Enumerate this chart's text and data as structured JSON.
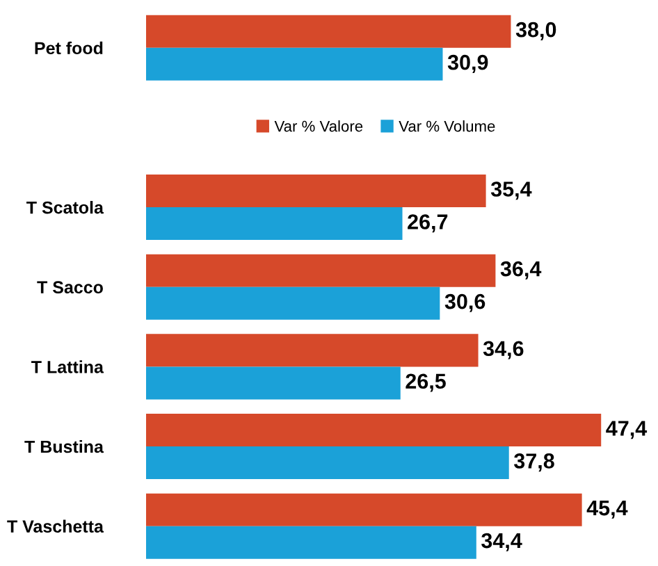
{
  "chart_data": {
    "type": "bar",
    "orientation": "horizontal",
    "categories": [
      "Pet food",
      null,
      "T Scatola",
      "T Sacco",
      "T Lattina",
      "T Bustina",
      "T Vaschetta"
    ],
    "series": [
      {
        "name": "Var % Valore",
        "color": "#d6492a",
        "values": [
          38.0,
          null,
          35.4,
          36.4,
          34.6,
          47.4,
          45.4
        ],
        "value_labels": [
          "38,0",
          null,
          "35,4",
          "36,4",
          "34,6",
          "47,4",
          "45,4"
        ]
      },
      {
        "name": "Var % Volume",
        "color": "#1ba1d8",
        "values": [
          30.9,
          null,
          26.7,
          30.6,
          26.5,
          37.8,
          34.4
        ],
        "value_labels": [
          "30,9",
          null,
          "26,7",
          "30,6",
          "26,5",
          "37,8",
          "34,4"
        ]
      }
    ],
    "legend": "top",
    "grid": false
  }
}
